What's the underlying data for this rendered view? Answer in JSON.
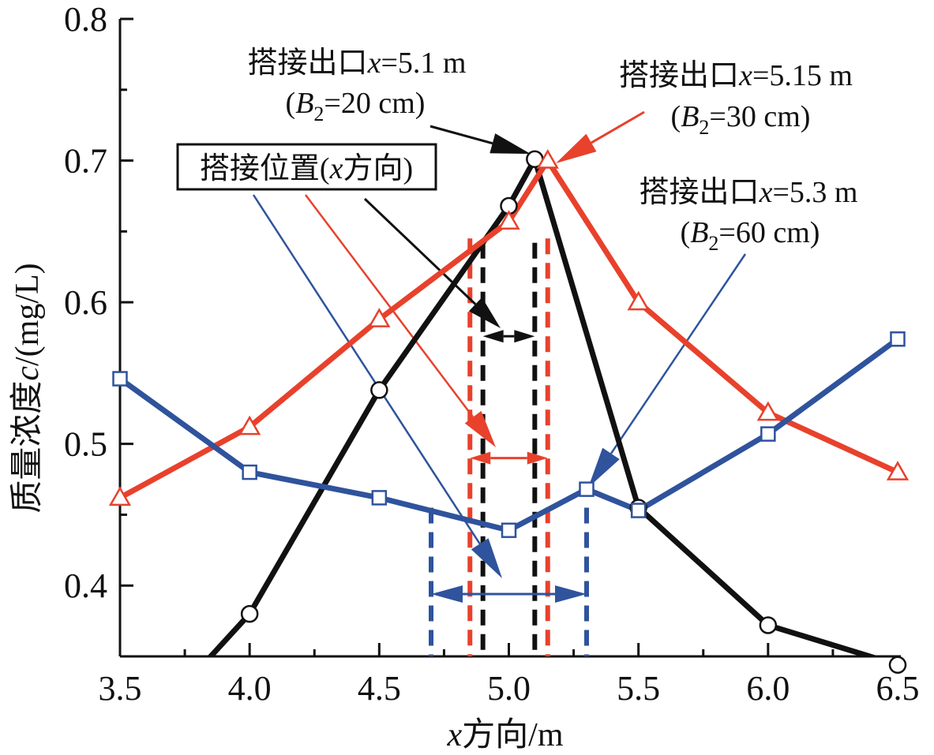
{
  "chart_data": {
    "type": "line",
    "title": "",
    "xlabel": "x方向/m",
    "ylabel": "质量浓度c/(mg/L)",
    "xlim": [
      3.5,
      6.5
    ],
    "ylim": [
      0.35,
      0.8
    ],
    "xticks": [
      "3.5",
      "4.0",
      "4.5",
      "5.0",
      "5.5",
      "6.0",
      "6.5"
    ],
    "xtick_values": [
      3.5,
      4.0,
      4.5,
      5.0,
      5.5,
      6.0,
      6.5
    ],
    "yticks": [
      "0.4",
      "0.5",
      "0.6",
      "0.7",
      "0.8"
    ],
    "ytick_values": [
      0.4,
      0.5,
      0.6,
      0.7,
      0.8
    ],
    "grid": false,
    "series": [
      {
        "name": "B2=20 cm",
        "color": "#111111",
        "marker": "circle",
        "x": [
          3.5,
          4.0,
          4.5,
          5.0,
          5.1,
          5.5,
          6.0,
          6.5
        ],
        "y": [
          0.28,
          0.38,
          0.538,
          0.668,
          0.701,
          0.455,
          0.372,
          0.344
        ]
      },
      {
        "name": "B2=30 cm",
        "color": "#e8412c",
        "marker": "triangle",
        "x": [
          3.5,
          4.0,
          4.5,
          5.0,
          5.15,
          5.5,
          6.0,
          6.5
        ],
        "y": [
          0.462,
          0.512,
          0.588,
          0.657,
          0.7,
          0.6,
          0.522,
          0.48
        ]
      },
      {
        "name": "B2=60 cm",
        "color": "#2f539c",
        "marker": "square",
        "x": [
          3.5,
          4.0,
          4.5,
          5.0,
          5.3,
          5.5,
          6.0,
          6.5
        ],
        "y": [
          0.546,
          0.48,
          0.462,
          0.439,
          0.468,
          0.453,
          0.507,
          0.574
        ]
      }
    ],
    "overlap_ranges": [
      {
        "series": "B2=20 cm",
        "color": "#111111",
        "x_from": 4.9,
        "x_to": 5.1,
        "arrow_y": 0.576
      },
      {
        "series": "B2=30 cm",
        "color": "#e8412c",
        "x_from": 4.85,
        "x_to": 5.15,
        "arrow_y": 0.49
      },
      {
        "series": "B2=60 cm",
        "color": "#2f539c",
        "x_from": 4.7,
        "x_to": 5.3,
        "arrow_y": 0.394
      }
    ],
    "annotations": [
      {
        "id": "outlet20",
        "line1": "搭接出口",
        "var": "x",
        "line1b": "=5.1 m",
        "line2a": "(",
        "line2var": "B",
        "line2sub": "2",
        "line2b": "=20 cm)",
        "color": "#111111"
      },
      {
        "id": "outlet30",
        "line1": "搭接出口",
        "var": "x",
        "line1b": "=5.15 m",
        "line2a": "(",
        "line2var": "B",
        "line2sub": "2",
        "line2b": "=30 cm)",
        "color": "#e8412c"
      },
      {
        "id": "outlet60",
        "line1": "搭接出口",
        "var": "x",
        "line1b": "=5.3 m",
        "line2a": "(",
        "line2var": "B",
        "line2sub": "2",
        "line2b": "=60 cm)",
        "color": "#2f539c"
      }
    ],
    "boxed_label": {
      "text_a": "搭接位置(",
      "var": "x",
      "text_b": "方向)"
    },
    "ylabel_parts": {
      "a": "质量浓度",
      "var": "c",
      "b": "/(mg/L)"
    },
    "xlabel_parts": {
      "var": "x",
      "b": "方向/m"
    }
  }
}
